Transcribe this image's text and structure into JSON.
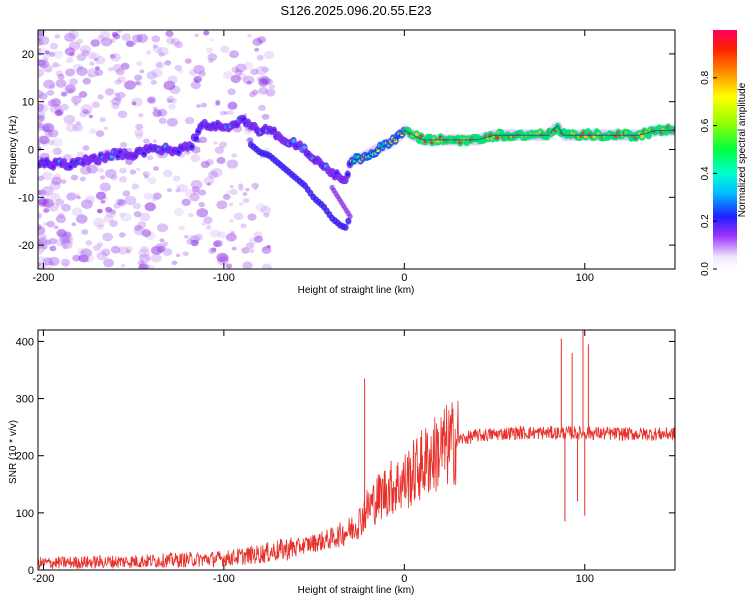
{
  "title": "S126.2025.096.20.55.E23",
  "chart_data": [
    {
      "type": "heatmap",
      "xlabel": "Height of straight line (km)",
      "ylabel": "Frequency (Hz)",
      "xlim": [
        -203,
        150
      ],
      "ylim": [
        -25,
        25
      ],
      "x_ticks": [
        -200,
        -100,
        0,
        100
      ],
      "y_ticks": [
        -20,
        -10,
        0,
        10,
        20
      ],
      "colorbar": {
        "label": "Normalized spectral amplitude",
        "range": [
          0.0,
          1.0
        ],
        "ticks": [
          0.0,
          0.2,
          0.4,
          0.6,
          0.8
        ]
      },
      "ridge": {
        "x": [
          -203,
          -185,
          -170,
          -160,
          -150,
          -140,
          -125,
          -118,
          -112,
          -105,
          -100,
          -95,
          -90,
          -85,
          -80,
          -75,
          -70,
          -65,
          -60,
          -55,
          -50,
          -45,
          -40,
          -35,
          -32,
          -30,
          -28,
          -25,
          -20,
          -15,
          -10,
          -5,
          0,
          5,
          10,
          20,
          30,
          40,
          50,
          60,
          70,
          80,
          82,
          85,
          88,
          90,
          92,
          95,
          100,
          110,
          120,
          130,
          140,
          150
        ],
        "y": [
          -3,
          -3,
          -2,
          -1,
          -1,
          0,
          0,
          1,
          5,
          5,
          5,
          5,
          6,
          5,
          4,
          4,
          3,
          2,
          1,
          0,
          -2,
          -3,
          -5,
          -6,
          -6,
          -3,
          -2,
          -2,
          -1,
          0,
          1,
          2,
          4,
          3,
          2,
          2,
          2,
          2,
          3,
          3,
          3,
          3,
          4,
          5,
          3,
          3,
          3,
          3,
          3,
          3,
          3,
          3,
          4,
          4
        ]
      }
    },
    {
      "type": "line",
      "xlabel": "Height of straight line (km)",
      "ylabel": "SNR (10 * v/v)",
      "xlim": [
        -203,
        150
      ],
      "ylim": [
        0,
        420
      ],
      "x_ticks": [
        -200,
        -100,
        0,
        100
      ],
      "y_ticks": [
        0,
        100,
        200,
        300,
        400
      ],
      "color": "#e8302a",
      "baseline": {
        "x": [
          -203,
          -150,
          -120,
          -100,
          -80,
          -60,
          -40,
          -30,
          -25,
          -20,
          -10,
          0,
          10,
          20,
          30,
          40,
          60,
          80,
          100,
          120,
          150
        ],
        "y": [
          12,
          15,
          18,
          20,
          28,
          40,
          55,
          70,
          85,
          110,
          140,
          155,
          185,
          210,
          228,
          235,
          240,
          240,
          240,
          238,
          238
        ]
      },
      "spikes": [
        {
          "x": -22,
          "y": 335
        },
        {
          "x": 87,
          "y": 405
        },
        {
          "x": 89,
          "y": 85
        },
        {
          "x": 93,
          "y": 380
        },
        {
          "x": 96,
          "y": 120
        },
        {
          "x": 99,
          "y": 420
        },
        {
          "x": 100,
          "y": 95
        },
        {
          "x": 102,
          "y": 395
        }
      ]
    }
  ]
}
